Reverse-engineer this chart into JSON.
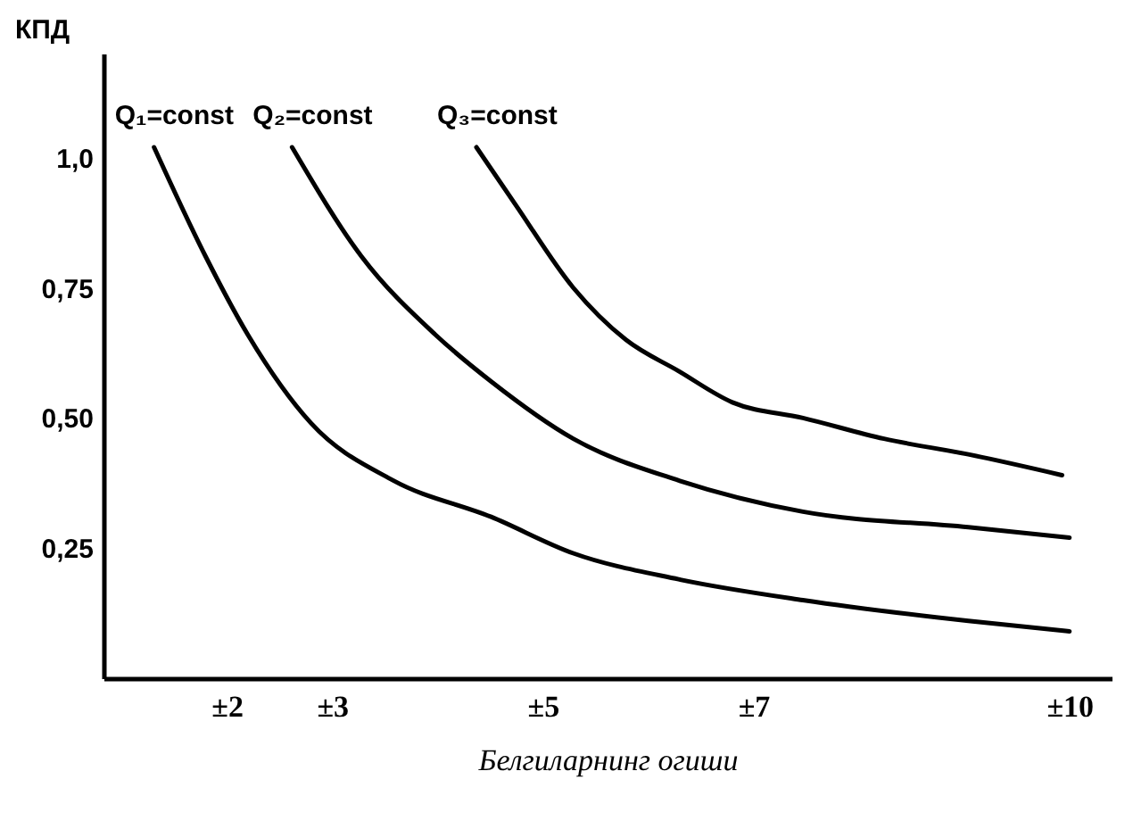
{
  "chart_data": {
    "type": "line",
    "xlabel": "Белгиларнинг огиши",
    "ylabel": "КПД",
    "xlim": [
      0.83,
      10.4
    ],
    "ylim": [
      0,
      1.2
    ],
    "xticks": [
      {
        "value": 2,
        "label": "±2"
      },
      {
        "value": 3,
        "label": "±3"
      },
      {
        "value": 5,
        "label": "±5"
      },
      {
        "value": 7,
        "label": "±7"
      },
      {
        "value": 10,
        "label": "±10"
      }
    ],
    "yticks": [
      {
        "value": 0.25,
        "label": "0,25"
      },
      {
        "value": 0.5,
        "label": "0,50"
      },
      {
        "value": 0.75,
        "label": "0,75"
      },
      {
        "value": 1.0,
        "label": "1,0"
      }
    ],
    "grid": false,
    "legend": false,
    "marker": "none",
    "line_style": "solid",
    "series": [
      {
        "color": "#000000",
        "x": [
          1.31,
          1.8,
          2.2,
          2.8,
          3.58,
          4.51,
          5.29,
          6.29,
          7.47,
          9.04,
          10.0
        ],
        "values": [
          1.02,
          0.81,
          0.66,
          0.49,
          0.38,
          0.31,
          0.24,
          0.19,
          0.15,
          0.11,
          0.09
        ]
      },
      {
        "color": "#000000",
        "x": [
          2.62,
          3.28,
          3.98,
          4.51,
          5.29,
          6.29,
          7.47,
          9.04,
          10.0
        ],
        "values": [
          1.02,
          0.81,
          0.66,
          0.57,
          0.46,
          0.38,
          0.32,
          0.29,
          0.27
        ]
      },
      {
        "color": "#000000",
        "x": [
          4.37,
          4.74,
          5.29,
          5.79,
          6.29,
          6.8,
          7.47,
          8.24,
          9.04,
          9.93
        ],
        "values": [
          1.02,
          0.91,
          0.75,
          0.65,
          0.59,
          0.53,
          0.5,
          0.46,
          0.43,
          0.39
        ]
      }
    ],
    "annotations": [
      {
        "text": "Q₁=const",
        "x": 1.31,
        "y": 1.02
      },
      {
        "text": "Q₂=const",
        "x": 2.62,
        "y": 1.02
      },
      {
        "text": "Q₃=const",
        "x": 4.37,
        "y": 1.02
      }
    ]
  }
}
